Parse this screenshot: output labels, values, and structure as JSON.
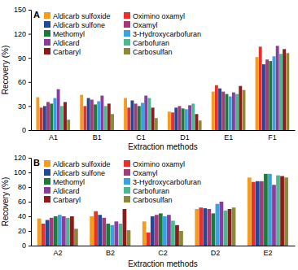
{
  "chart_data": [
    {
      "type": "bar",
      "title": "A",
      "x_label": "Extraction methods",
      "y_label": "Recovery (%)",
      "categories": [
        "A1",
        "B1",
        "C1",
        "D1",
        "E1",
        "F1"
      ],
      "ylim": [
        0,
        150
      ],
      "yticks": [
        0,
        30,
        60,
        90,
        120,
        150
      ],
      "grid": false,
      "legend": "upper left",
      "series": [
        {
          "name": "Aldicarb sulfoxide",
          "color": "#f39c1e",
          "values": [
            41,
            44,
            40,
            23,
            48,
            91
          ]
        },
        {
          "name": "Oximino oxamyl",
          "color": "#e8312a",
          "values": [
            28,
            30,
            28,
            22,
            56,
            104
          ]
        },
        {
          "name": "Aldicarb sulfone",
          "color": "#22489a",
          "values": [
            30,
            40,
            37,
            28,
            52,
            82
          ]
        },
        {
          "name": "Oxamyl",
          "color": "#a63a78",
          "values": [
            35,
            38,
            33,
            30,
            48,
            88
          ]
        },
        {
          "name": "Methomyl",
          "color": "#1e7a3c",
          "values": [
            33,
            32,
            30,
            27,
            45,
            86
          ]
        },
        {
          "name": "3-Hydroxycarbofuran",
          "color": "#38a3e0",
          "values": [
            40,
            36,
            34,
            26,
            42,
            92
          ]
        },
        {
          "name": "Aldicard",
          "color": "#8a3d9e",
          "values": [
            51,
            43,
            43,
            31,
            47,
            105
          ]
        },
        {
          "name": "Carbofuran",
          "color": "#4cb88e",
          "values": [
            30,
            30,
            40,
            33,
            45,
            95
          ]
        },
        {
          "name": "Carbaryl",
          "color": "#8b1c1c",
          "values": [
            35,
            33,
            28,
            20,
            55,
            101
          ]
        },
        {
          "name": "Carbosulfan",
          "color": "#8c8a3a",
          "values": [
            13,
            20,
            15,
            12,
            50,
            96
          ]
        }
      ]
    },
    {
      "type": "bar",
      "title": "B",
      "x_label": "Extraction methods",
      "y_label": "Recovery (%)",
      "categories": [
        "A2",
        "B2",
        "C2",
        "D2",
        "E2"
      ],
      "ylim": [
        0,
        120
      ],
      "yticks": [
        0,
        20,
        40,
        60,
        80,
        100,
        120
      ],
      "grid": false,
      "legend": "upper left",
      "series": [
        {
          "name": "Aldicarb sulfoxide",
          "color": "#f39c1e",
          "values": [
            37,
            40,
            33,
            50,
            93
          ]
        },
        {
          "name": "Oximino oxamyl",
          "color": "#e8312a",
          "values": [
            30,
            47,
            18,
            52,
            87
          ]
        },
        {
          "name": "Aldicarb sulfone",
          "color": "#22489a",
          "values": [
            35,
            42,
            40,
            51,
            88
          ]
        },
        {
          "name": "Oxamyl",
          "color": "#a63a78",
          "values": [
            38,
            38,
            42,
            50,
            88
          ]
        },
        {
          "name": "Methomyl",
          "color": "#1e7a3c",
          "values": [
            40,
            30,
            44,
            44,
            98
          ]
        },
        {
          "name": "3-Hydroxycarbofuran",
          "color": "#38a3e0",
          "values": [
            42,
            28,
            40,
            57,
            98
          ]
        },
        {
          "name": "Aldicard",
          "color": "#8a3d9e",
          "values": [
            40,
            33,
            42,
            60,
            83
          ]
        },
        {
          "name": "Carbofuran",
          "color": "#4cb88e",
          "values": [
            38,
            30,
            34,
            48,
            96
          ]
        },
        {
          "name": "Carbaryl",
          "color": "#8b1c1c",
          "values": [
            40,
            50,
            28,
            50,
            95
          ]
        },
        {
          "name": "Carbosulfan",
          "color": "#8c8a3a",
          "values": [
            23,
            21,
            20,
            52,
            93
          ]
        }
      ]
    }
  ]
}
